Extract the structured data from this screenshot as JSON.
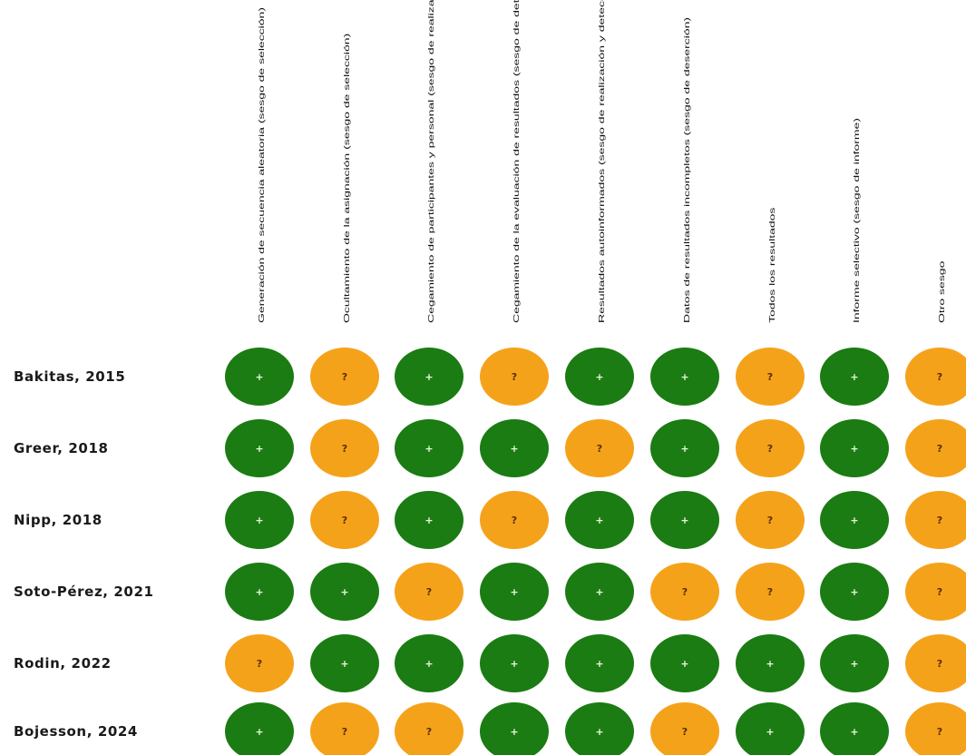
{
  "figure": {
    "domains": [
      "Generación de secuencia aleatoria (sesgo de selección)",
      "Ocultamiento de la asignación (sesgo de selección)",
      "Cegamiento de participantes y personal (sesgo de realización)",
      "Cegamiento de la evaluación de resultados (sesgo de detección)",
      "Resultados autoinformados (sesgo de realización y detección)",
      "Datos de resultados incompletos (sesgo de deserción)",
      "Todos los resultados",
      "Informe selectivo (sesgo de informe)",
      "Otro sesgo"
    ],
    "studies": [
      "Bakitas, 2015",
      "Greer, 2018",
      "Nipp, 2018",
      "Soto-Pérez, 2021",
      "Rodin, 2022",
      "Bojesson, 2024"
    ],
    "judgements": [
      [
        "+",
        "?",
        "+",
        "?",
        "+",
        "+",
        "?",
        "+",
        "?"
      ],
      [
        "+",
        "?",
        "+",
        "+",
        "?",
        "+",
        "?",
        "+",
        "?"
      ],
      [
        "+",
        "?",
        "+",
        "?",
        "+",
        "+",
        "?",
        "+",
        "?"
      ],
      [
        "+",
        "+",
        "?",
        "+",
        "+",
        "?",
        "?",
        "+",
        "?"
      ],
      [
        "?",
        "+",
        "+",
        "+",
        "+",
        "+",
        "+",
        "+",
        "?"
      ],
      [
        "+",
        "?",
        "?",
        "+",
        "+",
        "?",
        "+",
        "+",
        "?"
      ]
    ],
    "colors": {
      "low_risk": "#1a7c12",
      "unclear_risk": "#f5a21b",
      "low_risk_symbol": "#e8f4e0",
      "unclear_risk_symbol": "#5a3000"
    }
  }
}
